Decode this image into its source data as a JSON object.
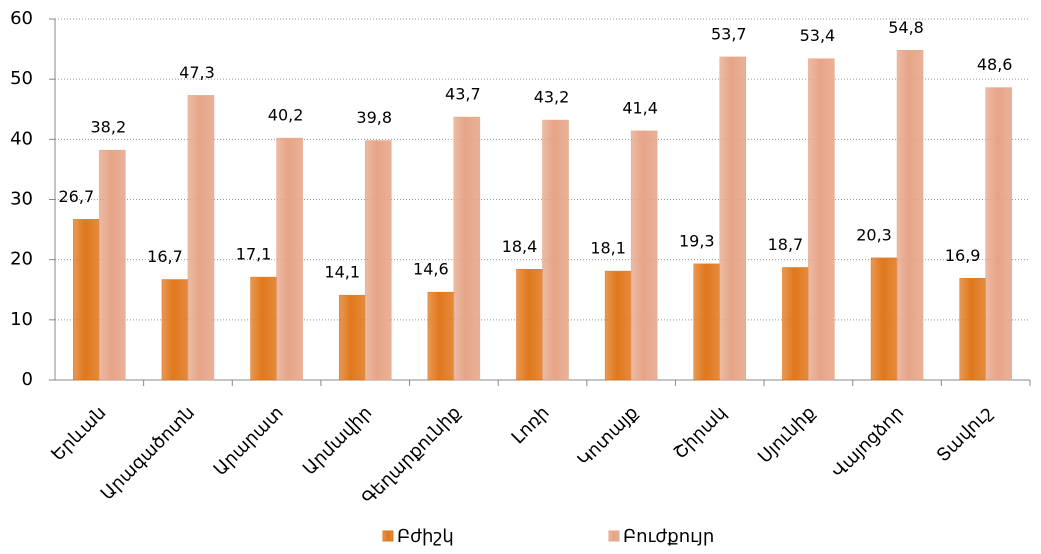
{
  "chart_data": {
    "type": "bar",
    "categories": [
      "Երևան",
      "Արագածոտն",
      "Արարատ",
      "Արմավիր",
      "Գեղարքունիք",
      "Լոռի",
      "Կոտայք",
      "Շիրակ",
      "Սյունիք",
      "Վայոցձոր",
      "Տավուշ"
    ],
    "series": [
      {
        "name": "Բժիշկ",
        "color": "#e0771c",
        "values": [
          26.7,
          16.7,
          17.1,
          14.1,
          14.6,
          18.4,
          18.1,
          19.3,
          18.7,
          20.3,
          16.9
        ],
        "value_labels": [
          "26,7",
          "16,7",
          "17,1",
          "14,1",
          "14,6",
          "18,4",
          "18,1",
          "19,3",
          "18,7",
          "20,3",
          "16,9"
        ]
      },
      {
        "name": "Բուժքույր",
        "color": "#e6a487",
        "values": [
          38.2,
          47.3,
          40.2,
          39.8,
          43.7,
          43.2,
          41.4,
          53.7,
          53.4,
          54.8,
          48.6
        ],
        "value_labels": [
          "38,2",
          "47,3",
          "40,2",
          "39,8",
          "43,7",
          "43,2",
          "41,4",
          "53,7",
          "53,4",
          "54,8",
          "48,6"
        ]
      }
    ],
    "ylim": [
      0,
      60
    ],
    "yticks": [
      0,
      10,
      20,
      30,
      40,
      50,
      60
    ],
    "grid": true,
    "legend": "bottom"
  }
}
